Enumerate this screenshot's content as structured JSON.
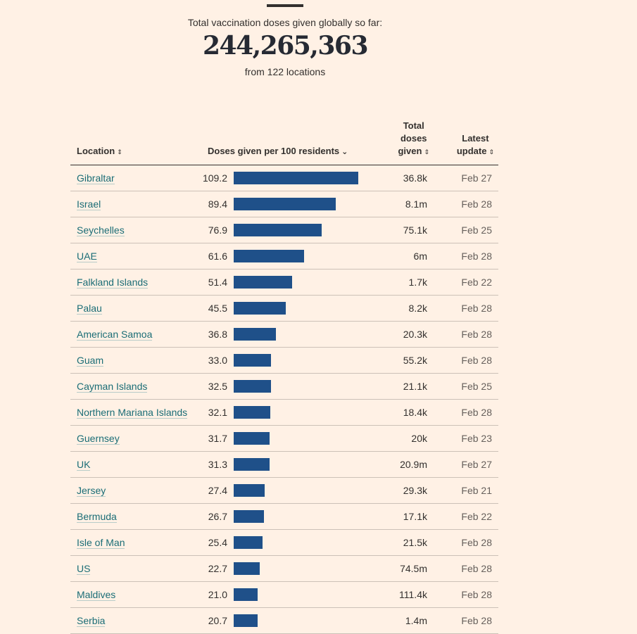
{
  "header": {
    "intro": "Total vaccination doses given globally so far:",
    "total": "244,265,363",
    "from": "from 122 locations"
  },
  "table": {
    "columns": {
      "location": "Location",
      "per100": "Doses given per 100 residents",
      "total_line1": "Total",
      "total_line2": "doses",
      "total_line3": "given",
      "update_line1": "Latest",
      "update_line2": "update"
    },
    "sorted_by": "per100",
    "bar_color": "#1f5089",
    "link_color": "#1a6d76",
    "rows": [
      {
        "location": "Gibraltar",
        "per100": "109.2",
        "total": "36.8k",
        "date": "Feb 27"
      },
      {
        "location": "Israel",
        "per100": "89.4",
        "total": "8.1m",
        "date": "Feb 28"
      },
      {
        "location": "Seychelles",
        "per100": "76.9",
        "total": "75.1k",
        "date": "Feb 25"
      },
      {
        "location": "UAE",
        "per100": "61.6",
        "total": "6m",
        "date": "Feb 28"
      },
      {
        "location": "Falkland Islands",
        "per100": "51.4",
        "total": "1.7k",
        "date": "Feb 22"
      },
      {
        "location": "Palau",
        "per100": "45.5",
        "total": "8.2k",
        "date": "Feb 28"
      },
      {
        "location": "American Samoa",
        "per100": "36.8",
        "total": "20.3k",
        "date": "Feb 28"
      },
      {
        "location": "Guam",
        "per100": "33.0",
        "total": "55.2k",
        "date": "Feb 28"
      },
      {
        "location": "Cayman Islands",
        "per100": "32.5",
        "total": "21.1k",
        "date": "Feb 25"
      },
      {
        "location": "Northern Mariana Islands",
        "per100": "32.1",
        "total": "18.4k",
        "date": "Feb 28"
      },
      {
        "location": "Guernsey",
        "per100": "31.7",
        "total": "20k",
        "date": "Feb 23"
      },
      {
        "location": "UK",
        "per100": "31.3",
        "total": "20.9m",
        "date": "Feb 27"
      },
      {
        "location": "Jersey",
        "per100": "27.4",
        "total": "29.3k",
        "date": "Feb 21"
      },
      {
        "location": "Bermuda",
        "per100": "26.7",
        "total": "17.1k",
        "date": "Feb 22"
      },
      {
        "location": "Isle of Man",
        "per100": "25.4",
        "total": "21.5k",
        "date": "Feb 28"
      },
      {
        "location": "US",
        "per100": "22.7",
        "total": "74.5m",
        "date": "Feb 28"
      },
      {
        "location": "Maldives",
        "per100": "21.0",
        "total": "111.4k",
        "date": "Feb 28"
      },
      {
        "location": "Serbia",
        "per100": "20.7",
        "total": "1.4m",
        "date": "Feb 28"
      }
    ]
  }
}
